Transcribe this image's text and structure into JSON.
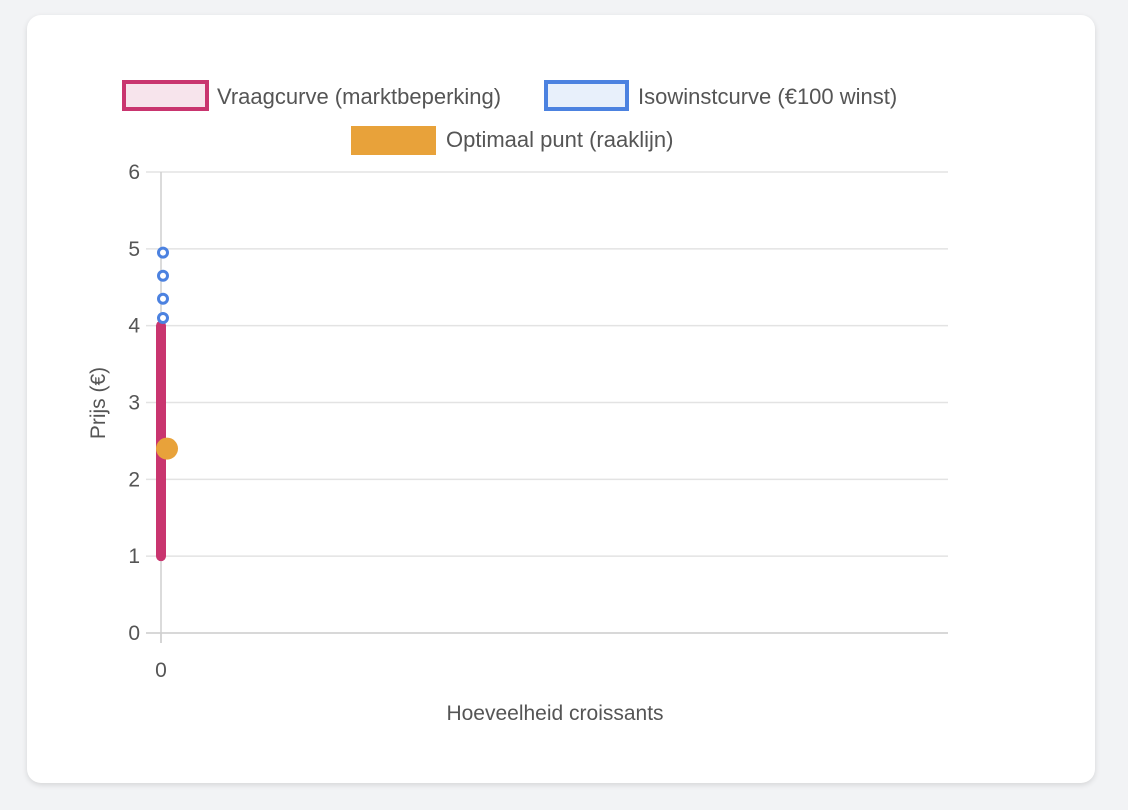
{
  "chart_data": {
    "type": "line",
    "xlabel": "Hoeveelheid croissants",
    "ylabel": "Prijs (€)",
    "x_ticks": [
      "0"
    ],
    "y_ticks": [
      "0",
      "1",
      "2",
      "3",
      "4",
      "5",
      "6"
    ],
    "ylim": [
      0,
      6
    ],
    "grid": true,
    "legend_position": "top",
    "series": [
      {
        "name": "Vraagcurve (marktbeperking)",
        "color": "#c9356f",
        "fill": "#f7e4ec",
        "style": "line",
        "points": [
          [
            0,
            1.0
          ],
          [
            0,
            1.5
          ],
          [
            0,
            2.0
          ],
          [
            0,
            2.5
          ],
          [
            0,
            3.0
          ],
          [
            0,
            3.5
          ],
          [
            0,
            4.0
          ]
        ]
      },
      {
        "name": "Isowinstcurve (€100 winst)",
        "color": "#4c82e0",
        "fill": "#e8f0fb",
        "style": "points",
        "points": [
          [
            0,
            4.1
          ],
          [
            0,
            4.35
          ],
          [
            0,
            4.65
          ],
          [
            0,
            4.95
          ]
        ]
      },
      {
        "name": "Optimaal punt (raaklijn)",
        "color": "#e8a23a",
        "fill": "#e8a23a",
        "style": "point",
        "points": [
          [
            0,
            2.4
          ]
        ]
      }
    ]
  }
}
